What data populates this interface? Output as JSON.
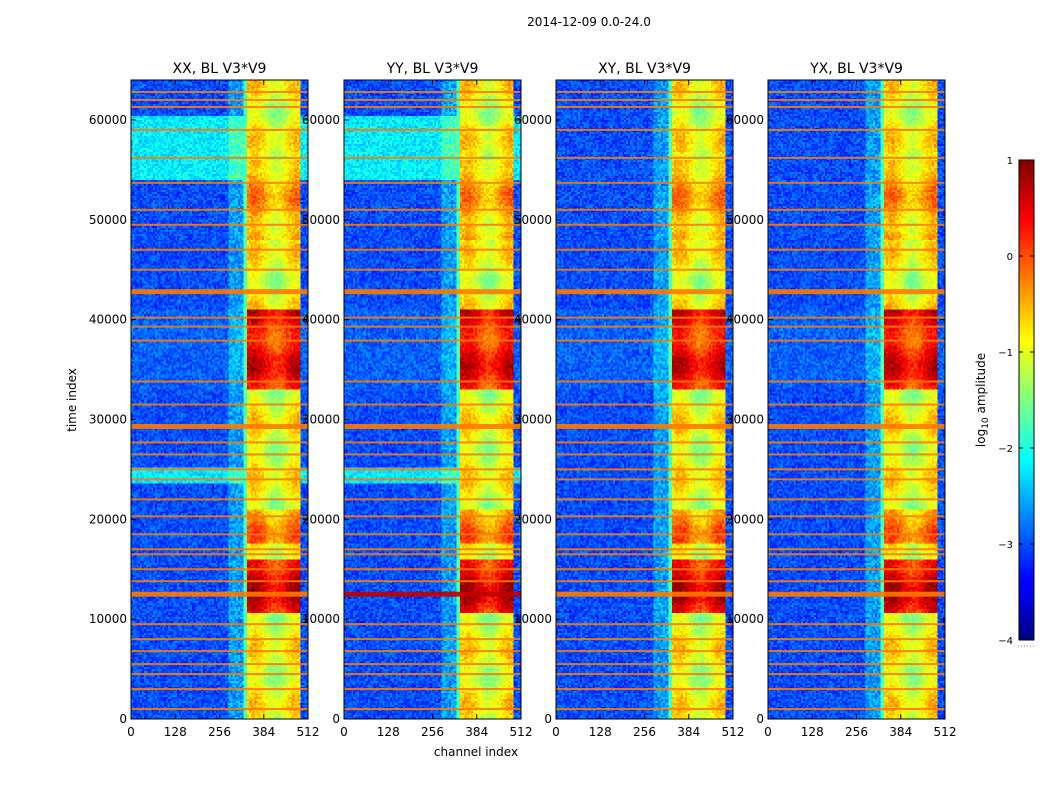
{
  "chart_data": {
    "type": "heatmap",
    "suptitle": "2014-12-09 0.0-24.0",
    "panels": [
      {
        "title": "XX, BL V3*V9",
        "pol": "XX"
      },
      {
        "title": "YY, BL V3*V9",
        "pol": "YY"
      },
      {
        "title": "XY, BL V3*V9",
        "pol": "XY"
      },
      {
        "title": "YX, BL V3*V9",
        "pol": "YX"
      }
    ],
    "xlabel": "channel index",
    "ylabel": "time index",
    "xlim": [
      0,
      512
    ],
    "ylim": [
      0,
      64000
    ],
    "xticks": [
      0,
      128,
      256,
      384,
      512
    ],
    "yticks": [
      0,
      10000,
      20000,
      30000,
      40000,
      50000,
      60000
    ],
    "colorbar": {
      "label": "log10 amplitude",
      "label_base": "log",
      "label_sub": "10",
      "label_rest": " amplitude",
      "vmin": -4,
      "vmax": 1,
      "ticks": [
        1,
        0,
        -1,
        -2,
        -3,
        -4
      ],
      "tick_labels": [
        "1",
        "0",
        "−1",
        "−2",
        "−3",
        "−4"
      ],
      "colormap": "jet"
    },
    "signal_band_channels": [
      325,
      490
    ],
    "rfi_rows": [
      1000,
      3000,
      4500,
      5500,
      6800,
      8000,
      9500,
      12500,
      13800,
      15000,
      16500,
      17000,
      18500,
      20300,
      22000,
      24000,
      25000,
      26500,
      27700,
      29300,
      31500,
      33800,
      37900,
      39300,
      40200,
      42800,
      45000,
      47000,
      49500,
      51000,
      53700,
      56200,
      59000,
      61300,
      62000,
      62800
    ],
    "colors": {
      "background": "#ffffff",
      "rfi_row": "#ff7a00",
      "low": "#0033ff",
      "high": "#800000"
    }
  }
}
